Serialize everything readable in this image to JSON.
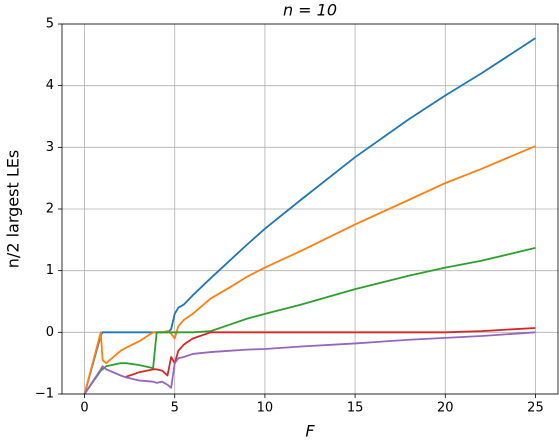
{
  "chart_data": {
    "type": "line",
    "title": "n = 10",
    "xlabel": "F",
    "ylabel": "n/2 largest LEs",
    "x": [
      0,
      0.9,
      1,
      1.2,
      2,
      2.3,
      3,
      3.8,
      4,
      4.3,
      4.6,
      4.8,
      5,
      5.2,
      5.5,
      6,
      7,
      8,
      9,
      10,
      12,
      15,
      18,
      20,
      22,
      25
    ],
    "series": [
      {
        "color": "#1f77b4",
        "values": [
          -1,
          -0.05,
          0,
          0,
          0,
          0,
          0,
          0,
          0,
          0,
          0,
          0.05,
          0.3,
          0.4,
          0.45,
          0.6,
          0.88,
          1.15,
          1.42,
          1.68,
          2.15,
          2.84,
          3.46,
          3.84,
          4.2,
          4.77
        ]
      },
      {
        "color": "#ff7f0e",
        "values": [
          -1,
          0,
          -0.45,
          -0.5,
          -0.3,
          -0.25,
          -0.15,
          0,
          0,
          0,
          0.02,
          -0.02,
          -0.1,
          0.1,
          0.2,
          0.3,
          0.55,
          0.72,
          0.9,
          1.05,
          1.32,
          1.75,
          2.15,
          2.42,
          2.65,
          3.02
        ]
      },
      {
        "color": "#2ca02c",
        "values": [
          -1,
          -0.62,
          -0.6,
          -0.55,
          -0.5,
          -0.5,
          -0.53,
          -0.58,
          0,
          0,
          0,
          0,
          0,
          0,
          0,
          0,
          0.02,
          0.12,
          0.22,
          0.3,
          0.45,
          0.7,
          0.92,
          1.05,
          1.16,
          1.37
        ]
      },
      {
        "color": "#d62728",
        "values": [
          null,
          null,
          null,
          null,
          null,
          -0.72,
          -0.65,
          -0.6,
          -0.6,
          -0.62,
          -0.7,
          -0.4,
          -0.5,
          -0.3,
          -0.2,
          -0.1,
          0,
          0,
          0,
          0,
          0,
          0,
          0,
          0,
          0.02,
          0.07
        ]
      },
      {
        "color": "#9467bd",
        "values": [
          -1,
          -0.6,
          -0.55,
          -0.6,
          -0.7,
          -0.73,
          -0.78,
          -0.8,
          -0.82,
          -0.8,
          -0.85,
          -0.9,
          -0.5,
          -0.42,
          -0.4,
          -0.35,
          -0.32,
          -0.3,
          -0.28,
          -0.27,
          -0.23,
          -0.18,
          -0.12,
          -0.09,
          -0.06,
          0
        ]
      }
    ],
    "xlim": [
      -1.25,
      26.25
    ],
    "xticks": [
      0,
      5,
      10,
      15,
      20,
      25
    ],
    "ylim": [
      -1,
      5
    ],
    "yticks": [
      {
        "value": -1,
        "label": "−1"
      },
      0,
      1,
      2,
      3,
      4,
      5
    ],
    "grid": true
  }
}
